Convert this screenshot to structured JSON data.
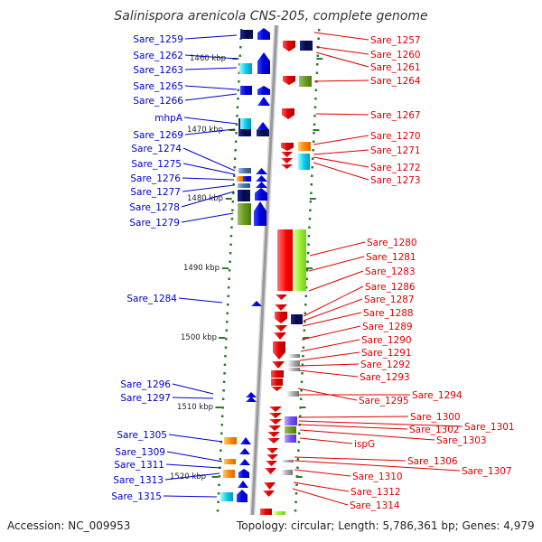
{
  "title": "Salinispora arenicola CNS-205, complete genome",
  "footer": {
    "accession": "Accession: NC_009953",
    "summary": "Topology: circular; Length: 5,786,361 bp; Genes: 4,979"
  },
  "scale": [
    "1460 kbp",
    "1470 kbp",
    "1480 kbp",
    "1490 kbp",
    "1500 kbp",
    "1510 kbp",
    "1520 kbp"
  ],
  "left_genes": [
    "Sare_1259",
    "Sare_1262",
    "Sare_1263",
    "Sare_1265",
    "Sare_1266",
    "mhpA",
    "Sare_1269",
    "Sare_1274",
    "Sare_1275",
    "Sare_1276",
    "Sare_1277",
    "Sare_1278",
    "Sare_1279",
    "Sare_1284",
    "Sare_1296",
    "Sare_1297",
    "Sare_1305",
    "Sare_1309",
    "Sare_1311",
    "Sare_1313",
    "Sare_1315"
  ],
  "right_genes": [
    "Sare_1257",
    "Sare_1260",
    "Sare_1261",
    "Sare_1264",
    "Sare_1267",
    "Sare_1270",
    "Sare_1271",
    "Sare_1272",
    "Sare_1273",
    "Sare_1280",
    "Sare_1281",
    "Sare_1283",
    "Sare_1286",
    "Sare_1287",
    "Sare_1288",
    "Sare_1289",
    "Sare_1290",
    "Sare_1291",
    "Sare_1292",
    "Sare_1293",
    "Sare_1294",
    "Sare_1295",
    "Sare_1300",
    "Sare_1301",
    "Sare_1302",
    "Sare_1303",
    "ispG",
    "Sare_1306",
    "Sare_1307",
    "Sare_1310",
    "Sare_1312",
    "Sare_1314"
  ],
  "colors": {
    "forward_label": "#0000cc",
    "reverse_label": "#dd0000",
    "backbone": "#999999",
    "tick": "#2a7a2a"
  }
}
